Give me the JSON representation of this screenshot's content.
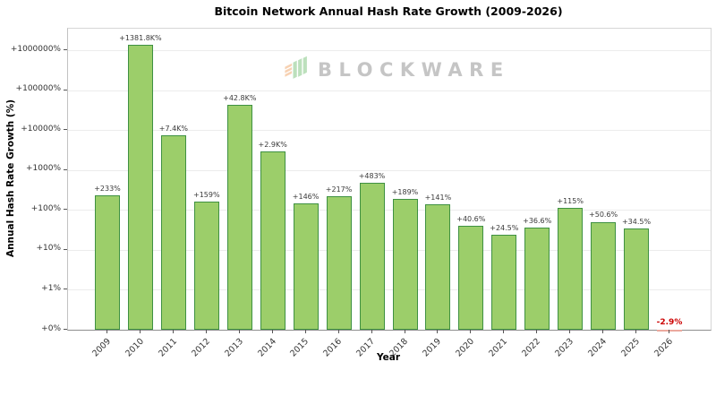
{
  "chart_data": {
    "type": "bar",
    "title": "Bitcoin Network Annual Hash Rate Growth (2009-2026)",
    "xlabel": "Year",
    "ylabel": "Annual Hash Rate Growth (%)",
    "scale": "log",
    "grid": true,
    "categories": [
      "2009",
      "2010",
      "2011",
      "2012",
      "2013",
      "2014",
      "2015",
      "2016",
      "2017",
      "2018",
      "2019",
      "2020",
      "2021",
      "2022",
      "2023",
      "2024",
      "2025",
      "2026"
    ],
    "values": [
      233,
      1381800,
      7400,
      159,
      42800,
      2900,
      146,
      217,
      483,
      189,
      141,
      40.6,
      24.5,
      36.6,
      115,
      50.6,
      34.5,
      -2.9
    ],
    "bar_labels": [
      "+233%",
      "+1381.8K%",
      "+7.4K%",
      "+159%",
      "+42.8K%",
      "+2.9K%",
      "+146%",
      "+217%",
      "+483%",
      "+189%",
      "+141%",
      "+40.6%",
      "+24.5%",
      "+36.6%",
      "+115%",
      "+50.6%",
      "+34.5%",
      "-2.9%"
    ],
    "y_ticks": [
      "+0%",
      "+1%",
      "+10%",
      "+100%",
      "+1000%",
      "+10000%",
      "+100000%",
      "+1000000%"
    ],
    "ylim_labels": [
      "+0%",
      "+1000000%"
    ],
    "colors": {
      "bar_fill": "#9CCE6A",
      "bar_edge": "#3F9142",
      "negative_bar_fill": "#F8CFC9",
      "negative_label": "#CC0000",
      "grid": "#ECECEC",
      "label_text": "#3A3A3A"
    }
  },
  "watermark": {
    "text": "BLOCKWARE",
    "icon": "blockware-cube-icon",
    "text_color": "#C5C5C5",
    "icon_orange": "#F2B27E",
    "icon_green": "#8FCB8F"
  }
}
